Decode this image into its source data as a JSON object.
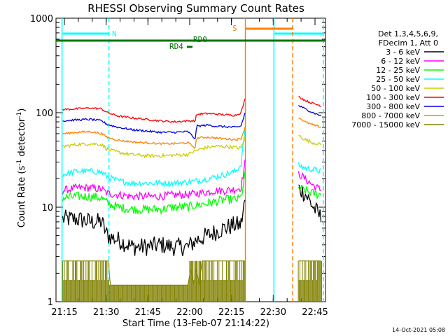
{
  "chart_data": {
    "type": "line",
    "title": "RHESSI Observing Summary Count Rates",
    "xlabel": "Start Time (13-Feb-07 21:14:22)",
    "ylabel_main": "Count Rate (s",
    "ylabel_sup1": "-1",
    "ylabel_mid": " detector",
    "ylabel_sup2": "-1",
    "ylabel_end": ")",
    "yscale": "log",
    "ylim": [
      1,
      1000
    ],
    "xlim_minutes": [
      0,
      36.0
    ],
    "x_tick_labels": [
      "21:15",
      "21:30",
      "21:45",
      "22:00",
      "22:15",
      "22:30",
      "22:45"
    ],
    "x_tick_minutes": [
      0.6,
      15.6,
      30.6,
      45.6,
      60.6,
      75.6,
      90.6
    ],
    "y_tick_labels": [
      "1",
      "10",
      "100",
      "1000"
    ],
    "y_tick_values": [
      1,
      10,
      100,
      1000
    ],
    "legend": {
      "placement": "right",
      "header": [
        "Det 1,3,4,5,6,9,",
        "FDecim 1, Att 0"
      ],
      "entries": [
        {
          "label": "3 - 6 keV",
          "color": "#000000"
        },
        {
          "label": "6 - 12 keV",
          "color": "#ff00ff"
        },
        {
          "label": "12 - 25 keV",
          "color": "#00ff00"
        },
        {
          "label": "25 - 50 keV",
          "color": "#00ffff"
        },
        {
          "label": "50 - 100 keV",
          "color": "#cccc00"
        },
        {
          "label": "100 - 300 keV",
          "color": "#ff0000"
        },
        {
          "label": "300 - 800 keV",
          "color": "#0000dd"
        },
        {
          "label": "800 - 7000 keV",
          "color": "#ff8000"
        },
        {
          "label": "7000 - 15000 keV",
          "color": "#808000"
        }
      ]
    },
    "flags": [
      {
        "label": "N",
        "color": "#00ffff"
      },
      {
        "label": "S",
        "color": "#ff8000"
      },
      {
        "label": "RD0",
        "color": "#007700"
      },
      {
        "label": "RD4",
        "color": "#007700"
      }
    ],
    "night_intervals_minutes": [
      [
        -0.5,
        16.6
      ],
      [
        75.6,
        93.6
      ]
    ],
    "saa_interval_minutes": [
      65.6,
      82.6
    ],
    "data_gap_minutes": [
      65.6,
      84.4
    ],
    "series": [
      {
        "name": "3 - 6 keV",
        "color": "#000000",
        "x": [
          0,
          5,
          10,
          14,
          16,
          20,
          25,
          30,
          35,
          40,
          45,
          48,
          52,
          55,
          58,
          62,
          64,
          65.5,
          84.5,
          87,
          90,
          93
        ],
        "y": [
          7.5,
          7.5,
          7,
          7,
          5,
          4.5,
          3.8,
          3.8,
          4,
          3.8,
          3.8,
          4.5,
          5,
          5.5,
          6,
          6.5,
          6.5,
          12,
          16,
          14,
          10,
          7.5
        ]
      },
      {
        "name": "6 - 12 keV",
        "color": "#ff00ff",
        "x": [
          0,
          5,
          10,
          14,
          16,
          20,
          25,
          30,
          35,
          40,
          45,
          48,
          52,
          55,
          58,
          62,
          64,
          65.5,
          84.5,
          87,
          90,
          93
        ],
        "y": [
          15,
          16,
          16,
          15.5,
          14,
          13.5,
          13,
          13,
          13,
          13.5,
          13.5,
          14,
          14.5,
          15,
          15,
          15.5,
          16,
          30,
          23,
          20,
          17,
          15
        ]
      },
      {
        "name": "12 - 25 keV",
        "color": "#00ff00",
        "x": [
          0,
          5,
          10,
          14,
          16,
          20,
          25,
          30,
          35,
          40,
          45,
          48,
          52,
          55,
          58,
          62,
          64,
          65.5,
          84.5,
          87,
          90,
          93
        ],
        "y": [
          12.5,
          13,
          13,
          12.5,
          11,
          10,
          9.5,
          9.5,
          9.5,
          10,
          10,
          10.5,
          11,
          11.5,
          12,
          12,
          12.5,
          22,
          16,
          15,
          14,
          13.5
        ]
      },
      {
        "name": "25 - 50 keV",
        "color": "#00ffff",
        "x": [
          0,
          5,
          10,
          14,
          16,
          20,
          25,
          30,
          35,
          40,
          45,
          48,
          52,
          55,
          58,
          62,
          64,
          65.5,
          84.5,
          87,
          90,
          93
        ],
        "y": [
          22,
          24,
          24,
          23.5,
          21,
          19,
          18,
          18,
          18,
          18,
          18.5,
          19,
          20,
          21,
          22,
          24,
          28,
          70,
          28,
          26,
          25,
          24
        ]
      },
      {
        "name": "50 - 100 keV",
        "color": "#cccc00",
        "x": [
          0,
          5,
          10,
          14,
          16,
          20,
          25,
          30,
          35,
          40,
          45,
          48,
          52,
          55,
          58,
          62,
          64,
          65.5,
          84.5,
          87,
          90,
          93
        ],
        "y": [
          44,
          46,
          47,
          46,
          41,
          38,
          36,
          35,
          35,
          35.5,
          36,
          40,
          43,
          44,
          44,
          43,
          42,
          55,
          58,
          52,
          48,
          46
        ]
      },
      {
        "name": "100 - 300 keV",
        "color": "#ff0000",
        "x": [
          0,
          5,
          10,
          14,
          16,
          20,
          25,
          30,
          35,
          40,
          45,
          47.8,
          48,
          52,
          55,
          58,
          62,
          64,
          65.5,
          84.5,
          87,
          90,
          93
        ],
        "y": [
          108,
          110,
          112,
          110,
          100,
          92,
          88,
          85,
          82,
          80,
          82,
          82,
          96,
          98,
          97,
          95,
          94,
          100,
          140,
          150,
          135,
          125,
          118
        ]
      },
      {
        "name": "300 - 800 keV",
        "color": "#0000dd",
        "x": [
          0,
          5,
          10,
          14,
          16,
          20,
          25,
          30,
          35,
          40,
          45,
          47.8,
          48,
          52,
          55,
          58,
          62,
          64,
          65.5,
          84.5,
          87,
          90,
          93
        ],
        "y": [
          82,
          84,
          85,
          82,
          75,
          70,
          66,
          64,
          62,
          62,
          63,
          52,
          72,
          74,
          72,
          71,
          70,
          72,
          100,
          120,
          110,
          100,
          92
        ]
      },
      {
        "name": "800 - 7000 keV",
        "color": "#ff8000",
        "x": [
          0,
          5,
          10,
          14,
          16,
          20,
          25,
          30,
          35,
          40,
          45,
          47.8,
          48,
          52,
          55,
          58,
          62,
          64,
          65.5,
          84.5,
          87,
          90,
          93
        ],
        "y": [
          60,
          62,
          63,
          60,
          55,
          51,
          49,
          48,
          47,
          47,
          48,
          42,
          54,
          55,
          54,
          53,
          52,
          53,
          70,
          90,
          80,
          74,
          70
        ]
      },
      {
        "name": "7000 - 15000 keV",
        "color": "#808000",
        "x": [
          0,
          16.5,
          17,
          45,
          46,
          47,
          48,
          49,
          50,
          64,
          65.5,
          84.5,
          93
        ],
        "y": [
          2.7,
          2.7,
          1.5,
          1.5,
          2.3,
          1.5,
          2.3,
          1.5,
          2.7,
          2.7,
          2.7,
          2.7,
          2.7
        ]
      }
    ]
  },
  "timestamp": "14-Oct-2021 05:08"
}
